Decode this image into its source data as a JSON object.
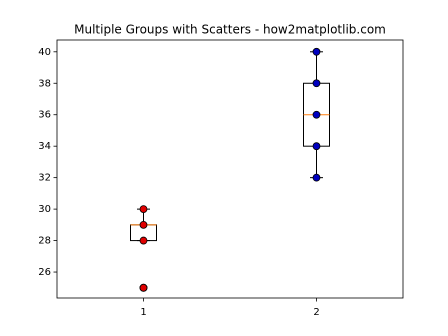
{
  "chart_data": {
    "type": "box",
    "title": "Multiple Groups with Scatters - how2matplotlib.com",
    "categories": [
      "1",
      "2"
    ],
    "xlim": [
      0.5,
      2.5
    ],
    "ylim": [
      24.35,
      40.75
    ],
    "yticks": [
      26,
      28,
      30,
      32,
      34,
      36,
      38,
      40
    ],
    "boxes": [
      {
        "whisker_low": 28,
        "q1": 28,
        "median": 29,
        "q3": 29,
        "whisker_high": 30,
        "fliers": [
          25
        ]
      },
      {
        "whisker_low": 32,
        "q1": 34,
        "median": 36,
        "q3": 38,
        "whisker_high": 40,
        "fliers": []
      }
    ],
    "points": [
      {
        "color": "#e00000",
        "values": [
          25,
          28,
          29,
          30
        ]
      },
      {
        "color": "#0000c0",
        "values": [
          32,
          34,
          36,
          38,
          40
        ]
      }
    ],
    "box_color": "#000000",
    "median_color": "#ff7f0e"
  }
}
